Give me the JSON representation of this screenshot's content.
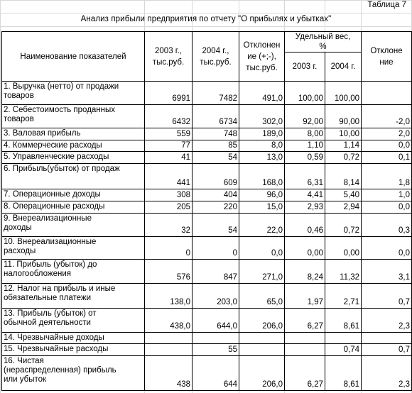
{
  "table_number": "Таблица 7",
  "title": "Анализ прибыли предприятия по отчету \"О прибылях и убытках\"",
  "headers": {
    "name": "Наименование показателей",
    "y2003_lines": [
      "2003 г.,",
      "тыс.руб."
    ],
    "y2004_lines": [
      "2004 г.,",
      "тыс.руб."
    ],
    "deviation_lines": [
      "Отклонен",
      "ие (+;-),",
      "тыс.руб."
    ],
    "share_lines": [
      "Удельный вес,",
      "%"
    ],
    "share_2003": "2003 г.",
    "share_2004": "2004 г.",
    "share_dev_lines": [
      "Отклоне",
      "ние"
    ]
  },
  "rows": [
    {
      "name": [
        "1. Выручка (нетто) от продажи",
        "товаров"
      ],
      "y2003": "6991",
      "y2004": "7482",
      "dev": "491,0",
      "s2003": "100,00",
      "s2004": "100,00",
      "sdev": ""
    },
    {
      "name": [
        "2. Себестоимость проданных",
        "товаров"
      ],
      "y2003": "6432",
      "y2004": "6734",
      "dev": "302,0",
      "s2003": "92,00",
      "s2004": "90,00",
      "sdev": "-2,0"
    },
    {
      "name": [
        "3. Валовая прибыль"
      ],
      "y2003": "559",
      "y2004": "748",
      "dev": "189,0",
      "s2003": "8,00",
      "s2004": "10,00",
      "sdev": "2,0"
    },
    {
      "name": [
        "4. Коммерческие расходы"
      ],
      "y2003": "77",
      "y2004": "85",
      "dev": "8,0",
      "s2003": "1,10",
      "s2004": "1,14",
      "sdev": "0,0"
    },
    {
      "name": [
        "5. Управленческие расходы"
      ],
      "y2003": "41",
      "y2004": "54",
      "dev": "13,0",
      "s2003": "0,59",
      "s2004": "0,72",
      "sdev": "0,1"
    },
    {
      "name": [
        "6. Прибыль(убыток) от продаж"
      ],
      "y2003": "441",
      "y2004": "609",
      "dev": "168,0",
      "s2003": "6,31",
      "s2004": "8,14",
      "sdev": "1,8"
    },
    {
      "name": [
        "7. Операционные доходы"
      ],
      "y2003": "308",
      "y2004": "404",
      "dev": "96,0",
      "s2003": "4,41",
      "s2004": "5,40",
      "sdev": "1,0"
    },
    {
      "name": [
        "8. Операционные расходы"
      ],
      "y2003": "205",
      "y2004": "220",
      "dev": "15,0",
      "s2003": "2,93",
      "s2004": "2,94",
      "sdev": "0,0"
    },
    {
      "name": [
        "9. Внереализационные",
        "доходы"
      ],
      "y2003": "32",
      "y2004": "54",
      "dev": "22,0",
      "s2003": "0,46",
      "s2004": "0,72",
      "sdev": "0,3"
    },
    {
      "name": [
        "10. Внереализационные",
        "расходы"
      ],
      "y2003": "0",
      "y2004": "0",
      "dev": "0,0",
      "s2003": "0,00",
      "s2004": "0,00",
      "sdev": "0,0"
    },
    {
      "name": [
        "11. Прибыль (убыток) до",
        "налогообложения"
      ],
      "y2003": "576",
      "y2004": "847",
      "dev": "271,0",
      "s2003": "8,24",
      "s2004": "11,32",
      "sdev": "3,1"
    },
    {
      "name": [
        "12. Налог на прибыль и иные",
        "обязательные платежи"
      ],
      "y2003": "138,0",
      "y2004": "203,0",
      "dev": "65,0",
      "s2003": "1,97",
      "s2004": "2,71",
      "sdev": "0,7"
    },
    {
      "name": [
        "13. Прибыль (убыток) от",
        "обычной деятельности"
      ],
      "y2003": "438,0",
      "y2004": "644,0",
      "dev": "206,0",
      "s2003": "6,27",
      "s2004": "8,61",
      "sdev": "2,3"
    },
    {
      "name": [
        "14. Чрезвычайные доходы"
      ],
      "y2003": "",
      "y2004": "",
      "dev": "",
      "s2003": "",
      "s2004": "",
      "sdev": ""
    },
    {
      "name": [
        "15. Чрезвычайные расходы"
      ],
      "y2003": "",
      "y2004": "55",
      "dev": "",
      "s2003": "",
      "s2004": "0,74",
      "sdev": "0,7"
    },
    {
      "name": [
        "16. Чистая",
        "(нераспределенная) прибыль",
        "или убыток"
      ],
      "y2003": "438",
      "y2004": "644",
      "dev": "206,0",
      "s2003": "6,27",
      "s2004": "8,61",
      "sdev": "2,3"
    }
  ]
}
